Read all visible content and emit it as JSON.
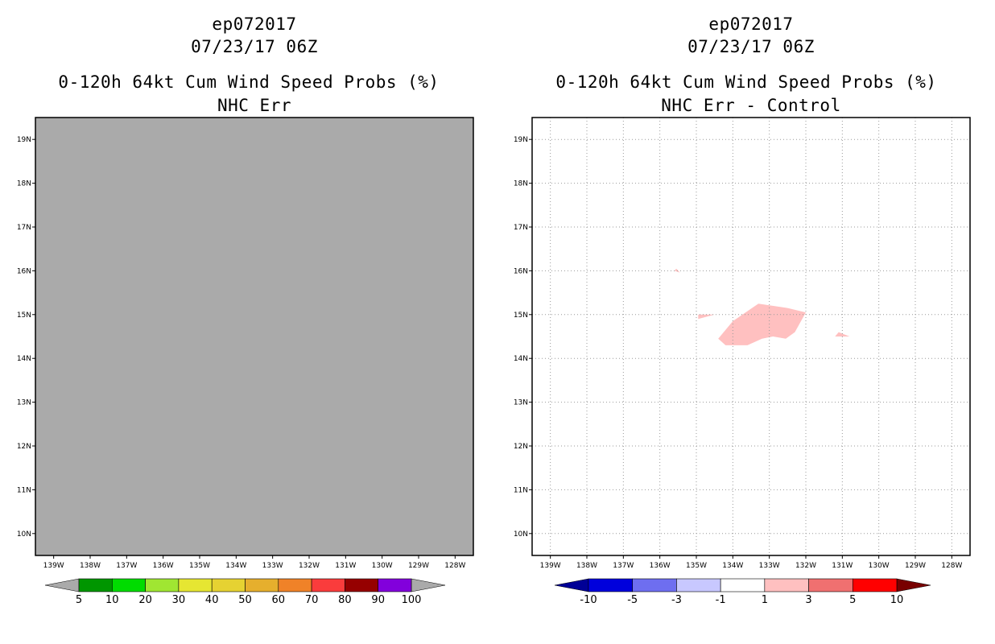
{
  "panels": [
    {
      "storm_id": "ep072017",
      "datetime": "07/23/17 06Z",
      "product": "0-120h 64kt Cum Wind Speed Probs (%)",
      "subtitle": "NHC Err"
    },
    {
      "storm_id": "ep072017",
      "datetime": "07/23/17 06Z",
      "product": "0-120h 64kt Cum Wind Speed Probs (%)",
      "subtitle": "NHC Err - Control"
    }
  ],
  "colors": {
    "map_fill_left": "#aaaaaa",
    "grid": "#999999",
    "diff_shade": "#ffc0c0"
  },
  "chart_data": [
    {
      "type": "heatmap",
      "title": "0-120h 64kt Cum Wind Speed Probs (%) - NHC Err",
      "x_ticks": [
        "139W",
        "138W",
        "137W",
        "136W",
        "135W",
        "134W",
        "133W",
        "132W",
        "131W",
        "130W",
        "129W",
        "128W"
      ],
      "y_ticks": [
        "10N",
        "11N",
        "12N",
        "13N",
        "14N",
        "15N",
        "16N",
        "17N",
        "18N",
        "19N"
      ],
      "xlim": [
        -139.5,
        -127.5
      ],
      "ylim": [
        9.5,
        19.5
      ],
      "grid": false,
      "field": "below lowest contour everywhere (all grey)",
      "colorbar": {
        "labels": [
          "5",
          "10",
          "20",
          "30",
          "40",
          "50",
          "60",
          "70",
          "80",
          "90",
          "100"
        ],
        "colors": [
          "#009600",
          "#00dc00",
          "#a0e632",
          "#e6e632",
          "#e6d232",
          "#e6af2d",
          "#f08228",
          "#fa3c3c",
          "#960000",
          "#8200dc"
        ],
        "end_colors": [
          "#aaaaaa",
          "#aaaaaa"
        ]
      }
    },
    {
      "type": "heatmap",
      "title": "0-120h 64kt Cum Wind Speed Probs (%) - NHC Err - Control",
      "x_ticks": [
        "139W",
        "138W",
        "137W",
        "136W",
        "135W",
        "134W",
        "133W",
        "132W",
        "131W",
        "130W",
        "129W",
        "128W"
      ],
      "y_ticks": [
        "10N",
        "11N",
        "12N",
        "13N",
        "14N",
        "15N",
        "16N",
        "17N",
        "18N",
        "19N"
      ],
      "xlim": [
        -139.5,
        -127.5
      ],
      "ylim": [
        9.5,
        19.5
      ],
      "grid": true,
      "shaded_regions": [
        {
          "range": "1 to 3",
          "lonlat": [
            [
              -134.4,
              14.45
            ],
            [
              -134.0,
              14.85
            ],
            [
              -133.3,
              15.25
            ],
            [
              -132.5,
              15.15
            ],
            [
              -132.0,
              15.05
            ],
            [
              -132.3,
              14.6
            ],
            [
              -132.55,
              14.45
            ],
            [
              -132.9,
              14.5
            ],
            [
              -133.2,
              14.45
            ],
            [
              -133.6,
              14.3
            ],
            [
              -134.2,
              14.3
            ]
          ]
        },
        {
          "range": "1 to 3",
          "lonlat": [
            [
              -134.95,
              15.0
            ],
            [
              -134.5,
              15.0
            ],
            [
              -134.95,
              14.9
            ]
          ]
        },
        {
          "range": "1 to 3",
          "lonlat": [
            [
              -135.6,
              16.0
            ],
            [
              -135.45,
              15.96
            ],
            [
              -135.55,
              16.05
            ]
          ]
        },
        {
          "range": "1 to 3",
          "lonlat": [
            [
              -131.2,
              14.5
            ],
            [
              -130.8,
              14.5
            ],
            [
              -131.1,
              14.6
            ]
          ]
        }
      ],
      "colorbar": {
        "labels": [
          "-10",
          "-5",
          "-3",
          "-1",
          "1",
          "3",
          "5",
          "10"
        ],
        "colors": [
          "#0000dc",
          "#6e6ef0",
          "#c8c8ff",
          "#ffffff",
          "#ffc0c0",
          "#f07070",
          "#ff0000"
        ],
        "end_colors": [
          "#000096",
          "#780000"
        ]
      }
    }
  ]
}
